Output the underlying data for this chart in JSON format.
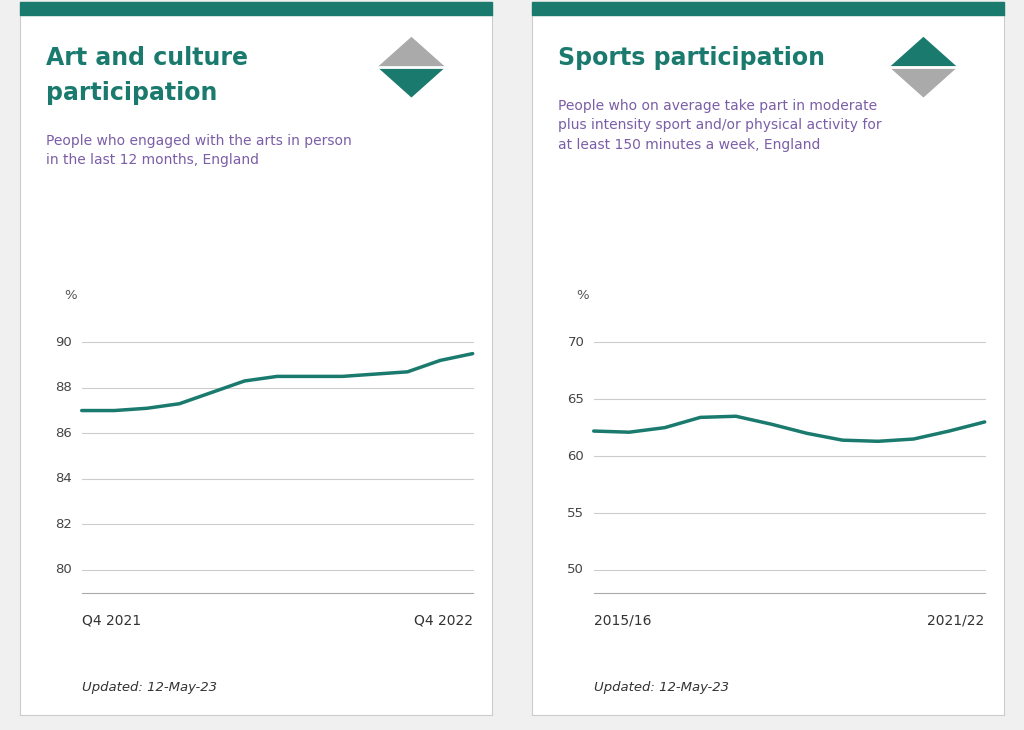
{
  "chart1": {
    "title_line1": "Art and culture",
    "title_line2": "participation",
    "subtitle": "People who engaged with the arts in person\nin the last 12 months, England",
    "x_labels": [
      "Q4 2021",
      "Q4 2022"
    ],
    "y_values": [
      87.0,
      87.0,
      87.1,
      87.3,
      87.8,
      88.3,
      88.5,
      88.5,
      88.5,
      88.6,
      88.7,
      89.2,
      89.5
    ],
    "ylim": [
      79,
      91
    ],
    "yticks": [
      80,
      82,
      84,
      86,
      88,
      90
    ],
    "ylabel": "%",
    "updated": "Updated: 12-May-23",
    "line_color": "#1a7a6e",
    "title_color": "#1a7a6e",
    "subtitle_color": "#7B5EA7",
    "icon_up_color": "#aaaaaa",
    "icon_down_color": "#1a7a6e"
  },
  "chart2": {
    "title_line1": "Sports participation",
    "title_line2": "",
    "subtitle": "People who on average take part in moderate\nplus intensity sport and/or physical activity for\nat least 150 minutes a week, England",
    "x_labels": [
      "2015/16",
      "2021/22"
    ],
    "y_values": [
      62.2,
      62.1,
      62.5,
      63.4,
      63.5,
      62.8,
      62.0,
      61.4,
      61.3,
      61.5,
      62.2,
      63.0
    ],
    "ylim": [
      48,
      72
    ],
    "yticks": [
      50,
      55,
      60,
      65,
      70
    ],
    "ylabel": "%",
    "updated": "Updated: 12-May-23",
    "line_color": "#1a7a6e",
    "title_color": "#1a7a6e",
    "subtitle_color": "#7B5EA7",
    "icon_up_color": "#1a7a6e",
    "icon_down_color": "#aaaaaa"
  },
  "background_color": "#f0f0f0",
  "panel_bg": "#ffffff",
  "border_color": "#cccccc",
  "top_accent_color": "#1a7a6e",
  "grid_color": "#cccccc"
}
